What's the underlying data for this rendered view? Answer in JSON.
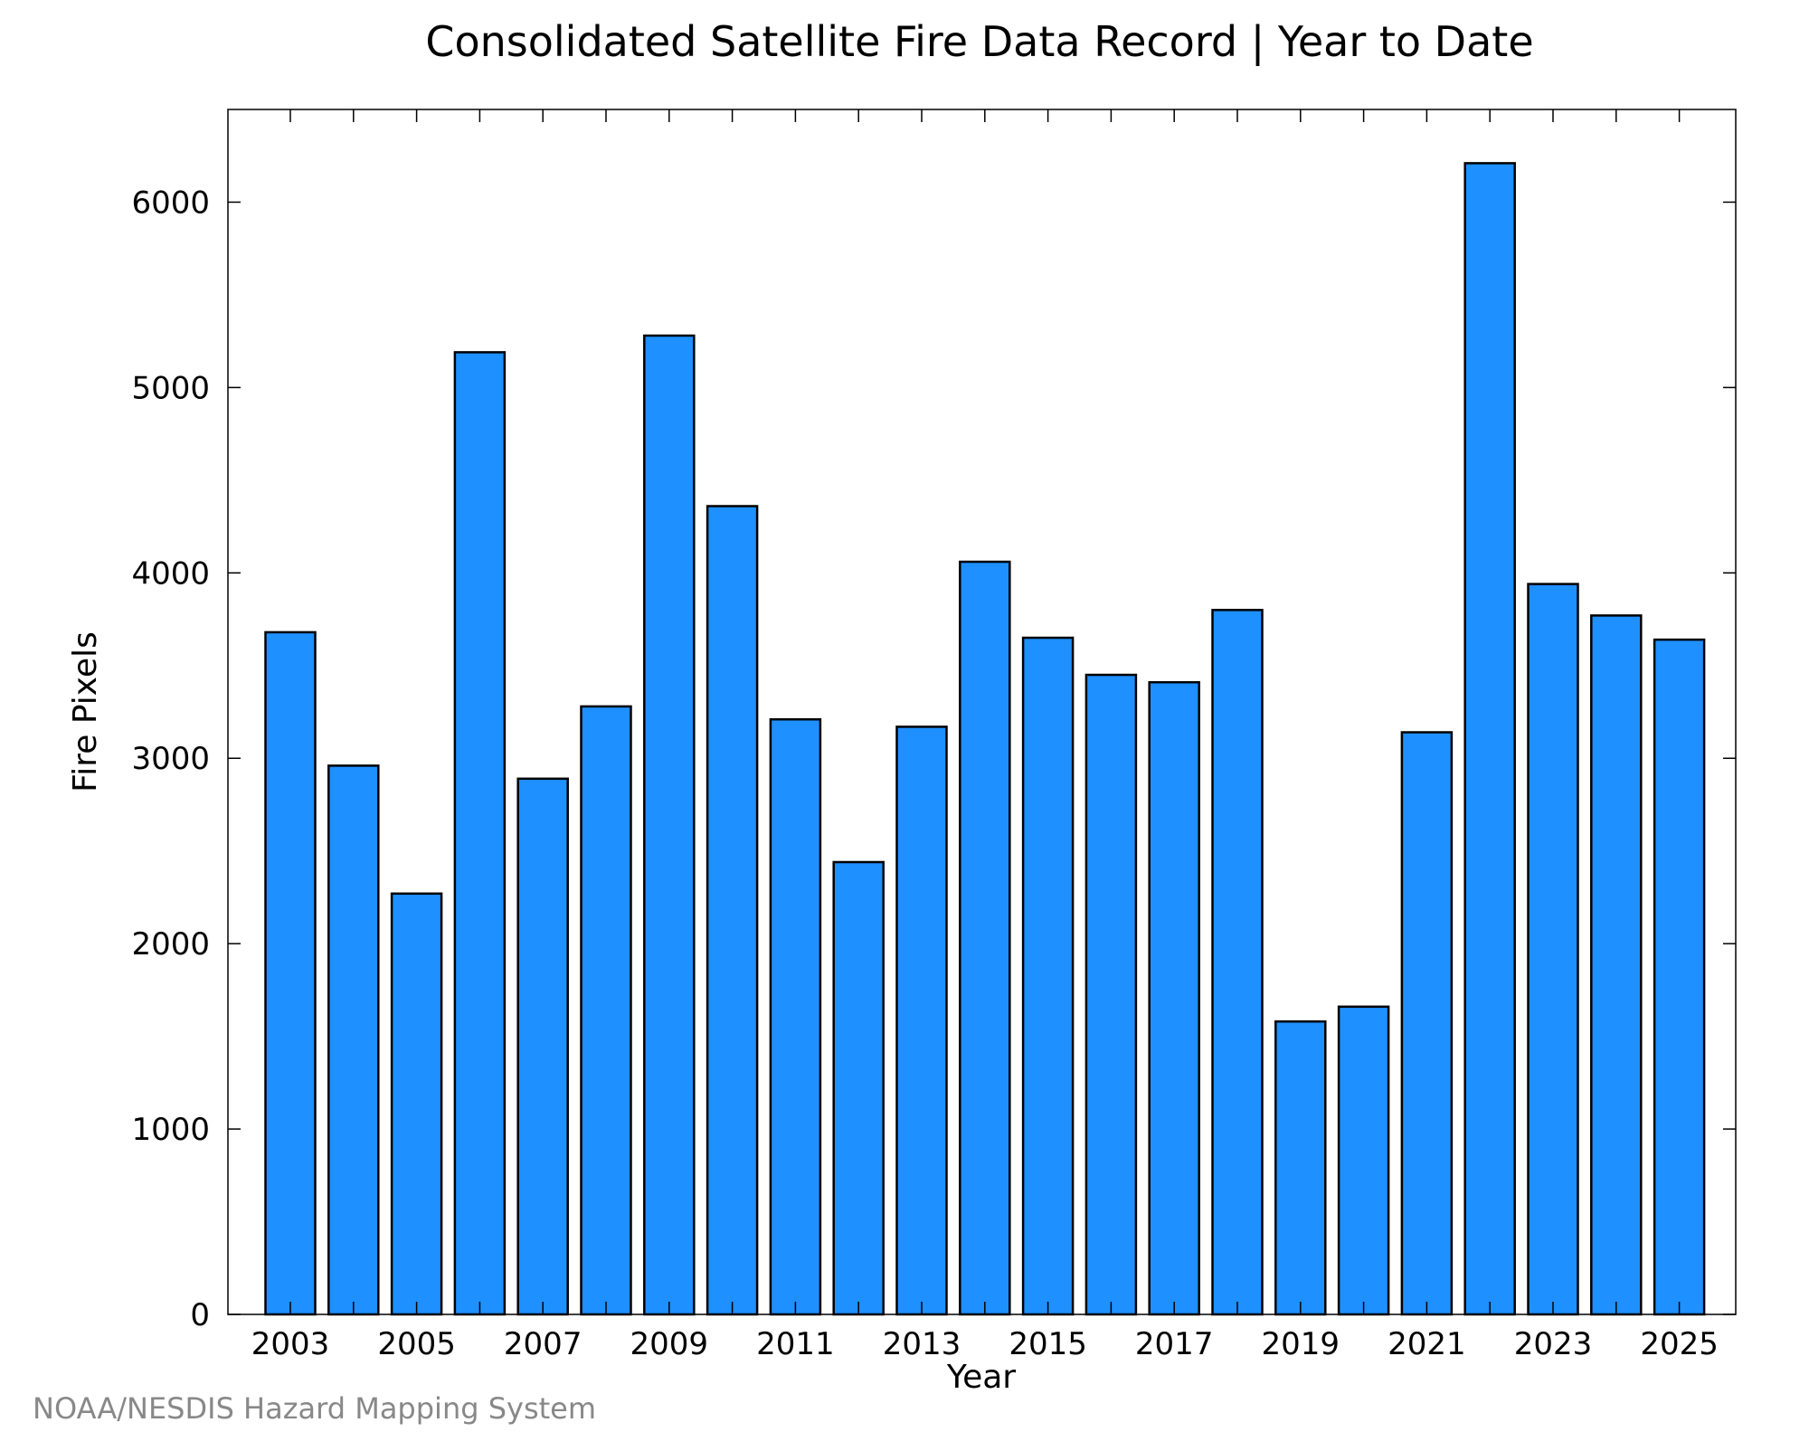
{
  "chart_data": {
    "type": "bar",
    "title": "Consolidated Satellite Fire Data Record | Year to Date",
    "xlabel": "Year",
    "ylabel": "Fire Pixels",
    "categories": [
      "2003",
      "2004",
      "2005",
      "2006",
      "2007",
      "2008",
      "2009",
      "2010",
      "2011",
      "2012",
      "2013",
      "2014",
      "2015",
      "2016",
      "2017",
      "2018",
      "2019",
      "2020",
      "2021",
      "2022",
      "2023",
      "2024",
      "2025"
    ],
    "values": [
      3680,
      2960,
      2270,
      5190,
      2890,
      3280,
      5280,
      4360,
      3210,
      2440,
      3170,
      4060,
      3650,
      3450,
      3410,
      3800,
      1580,
      1660,
      3140,
      6210,
      3940,
      3770,
      3640
    ],
    "x_tick_labels": [
      "2003",
      "2005",
      "2007",
      "2009",
      "2011",
      "2013",
      "2015",
      "2017",
      "2019",
      "2021",
      "2023",
      "2025"
    ],
    "y_tick_labels": [
      "0",
      "1000",
      "2000",
      "3000",
      "4000",
      "5000",
      "6000"
    ],
    "ylim": [
      0,
      6500
    ],
    "grid": false,
    "legend": "none",
    "colors": {
      "bar_fill": "#1e90ff",
      "bar_edge": "#000000",
      "axis": "#000000",
      "credit_text": "#888888"
    }
  },
  "footer": {
    "credit": "NOAA/NESDIS Hazard Mapping System"
  }
}
